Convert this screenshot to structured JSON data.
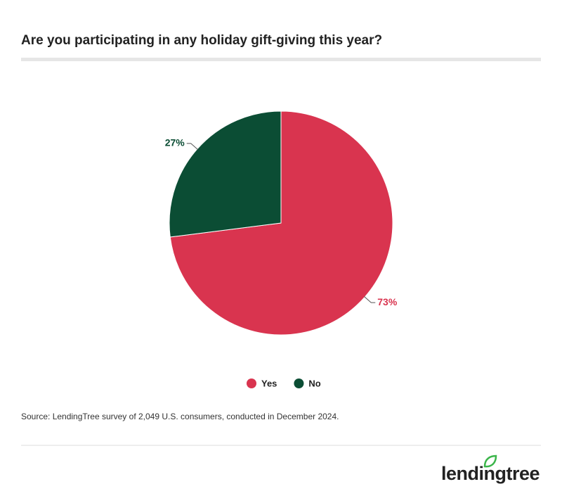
{
  "chart_data": {
    "type": "pie",
    "title": "Are you participating in any holiday gift-giving this year?",
    "categories": [
      "Yes",
      "No"
    ],
    "values": [
      73,
      27
    ],
    "value_labels": [
      "73%",
      "27%"
    ],
    "colors": [
      "#d9344f",
      "#0b4d34"
    ],
    "source": "Source: LendingTree survey of 2,049 U.S. consumers, conducted in December 2024."
  },
  "logo": "lendingtree"
}
